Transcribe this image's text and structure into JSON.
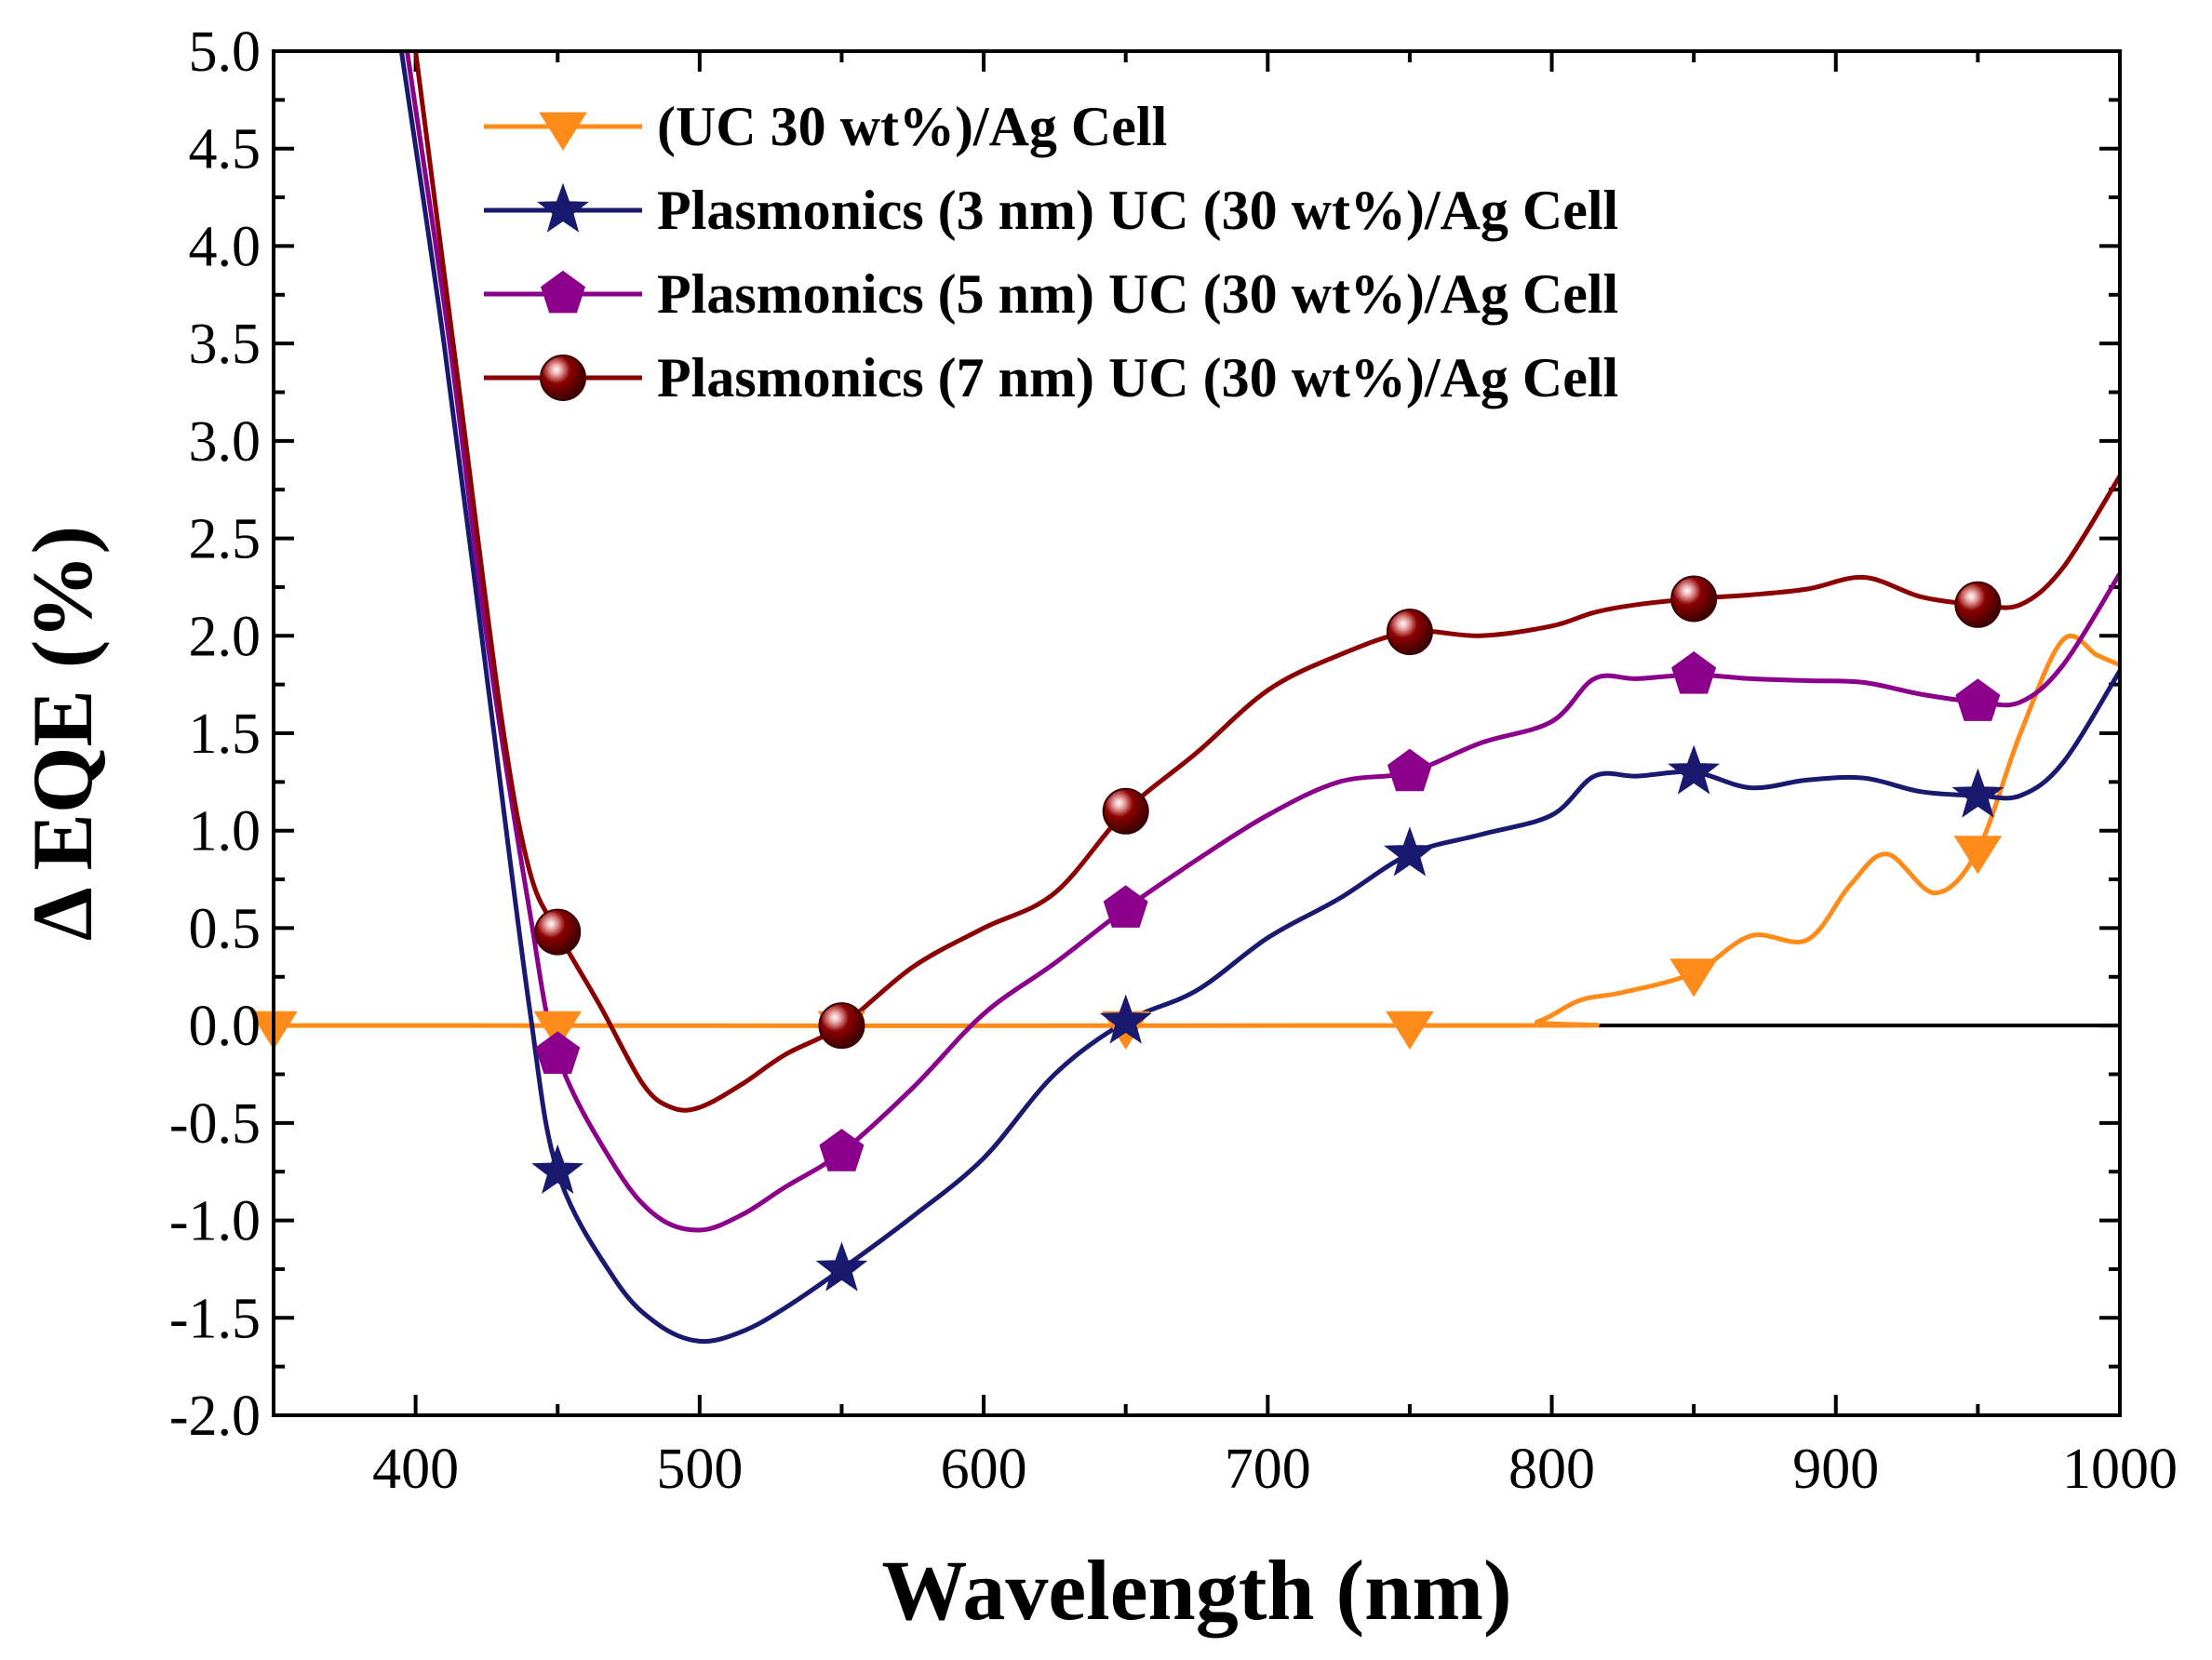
{
  "chart_data": {
    "type": "line",
    "xlabel": "Wavelength (nm)",
    "ylabel": "Δ EQE (%)",
    "xlim": [
      350,
      1000
    ],
    "ylim": [
      -2.0,
      5.0
    ],
    "x_ticks": [
      400,
      500,
      600,
      700,
      800,
      900,
      1000
    ],
    "x_tick_labels": [
      "400",
      "500",
      "600",
      "700",
      "800",
      "900",
      "1000"
    ],
    "y_ticks": [
      -2.0,
      -1.5,
      -1.0,
      -0.5,
      0.0,
      0.5,
      1.0,
      1.5,
      2.0,
      2.5,
      3.0,
      3.5,
      4.0,
      4.5,
      5.0
    ],
    "y_tick_labels": [
      "-2.0",
      "-1.5",
      "-1.0",
      "-0.5",
      "0.0",
      "0.5",
      "1.0",
      "1.5",
      "2.0",
      "2.5",
      "3.0",
      "3.5",
      "4.0",
      "4.5",
      "5.0"
    ],
    "zero_line": true,
    "legend_position": "top-left",
    "series": [
      {
        "name": "(UC 30 wt%)/Ag Cell",
        "color": "#FF8C1A",
        "marker": "triangle-down",
        "x": [
          350,
          780,
          795,
          810,
          825,
          850,
          870,
          890,
          905,
          918,
          935,
          950,
          965,
          980,
          992,
          1000
        ],
        "y": [
          0,
          0,
          0.02,
          0.13,
          0.17,
          0.27,
          0.46,
          0.44,
          0.72,
          0.88,
          0.68,
          0.9,
          1.5,
          1.98,
          1.9,
          1.85
        ],
        "marker_x": [
          350,
          450,
          550,
          650,
          750,
          850,
          950
        ],
        "marker_y": [
          0,
          0,
          0,
          0,
          0,
          0.27,
          0.9
        ]
      },
      {
        "name": "Plasmonics (3 nm) UC (30 wt%)/Ag Cell",
        "color": "#191970",
        "marker": "star",
        "x": [
          395,
          410,
          425,
          440,
          450,
          470,
          485,
          500,
          515,
          530,
          550,
          575,
          600,
          625,
          650,
          675,
          700,
          725,
          750,
          775,
          800,
          815,
          830,
          850,
          870,
          890,
          910,
          930,
          950,
          965,
          980,
          1000
        ],
        "y": [
          5.0,
          3.5,
          1.8,
          0.1,
          -0.75,
          -1.3,
          -1.53,
          -1.62,
          -1.57,
          -1.45,
          -1.25,
          -0.98,
          -0.68,
          -0.25,
          0.02,
          0.18,
          0.45,
          0.65,
          0.88,
          0.98,
          1.08,
          1.28,
          1.28,
          1.3,
          1.22,
          1.26,
          1.27,
          1.2,
          1.18,
          1.18,
          1.35,
          1.82
        ],
        "marker_x": [
          450,
          550,
          650,
          750,
          850,
          950
        ],
        "marker_y": [
          -0.75,
          -1.25,
          0.02,
          0.88,
          1.3,
          1.18
        ]
      },
      {
        "name": "Plasmonics (5 nm) UC (30 wt%)/Ag Cell",
        "color": "#8B008B",
        "marker": "pentagon",
        "x": [
          397,
          412,
          425,
          440,
          450,
          470,
          485,
          500,
          515,
          530,
          550,
          575,
          600,
          625,
          650,
          675,
          700,
          725,
          750,
          775,
          800,
          815,
          830,
          850,
          870,
          890,
          910,
          930,
          950,
          965,
          980,
          1000
        ],
        "y": [
          5.0,
          3.5,
          2.0,
          0.6,
          -0.15,
          -0.72,
          -0.98,
          -1.05,
          -0.97,
          -0.83,
          -0.65,
          -0.32,
          0.06,
          0.32,
          0.6,
          0.85,
          1.08,
          1.25,
          1.3,
          1.45,
          1.56,
          1.78,
          1.78,
          1.8,
          1.78,
          1.77,
          1.76,
          1.7,
          1.66,
          1.66,
          1.85,
          2.32
        ],
        "marker_x": [
          450,
          550,
          650,
          750,
          850,
          950
        ],
        "marker_y": [
          -0.15,
          -0.65,
          0.6,
          1.3,
          1.8,
          1.66
        ]
      },
      {
        "name": "Plasmonics (7 nm) UC (30 wt%)/Ag Cell",
        "color": "#8B0000",
        "marker": "circle",
        "x": [
          400,
          415,
          430,
          440,
          450,
          465,
          480,
          490,
          500,
          515,
          530,
          550,
          575,
          600,
          625,
          650,
          675,
          700,
          725,
          750,
          775,
          800,
          815,
          830,
          850,
          870,
          890,
          910,
          930,
          950,
          965,
          980,
          1000
        ],
        "y": [
          5.0,
          3.3,
          1.6,
          0.8,
          0.48,
          0.1,
          -0.3,
          -0.42,
          -0.42,
          -0.3,
          -0.15,
          0.0,
          0.3,
          0.5,
          0.68,
          1.1,
          1.4,
          1.72,
          1.9,
          2.02,
          2.0,
          2.05,
          2.12,
          2.16,
          2.19,
          2.21,
          2.24,
          2.3,
          2.2,
          2.16,
          2.16,
          2.35,
          2.82
        ],
        "marker_x": [
          450,
          550,
          650,
          750,
          850,
          950
        ],
        "marker_y": [
          0.48,
          0.0,
          1.1,
          2.02,
          2.19,
          2.16
        ]
      }
    ]
  }
}
